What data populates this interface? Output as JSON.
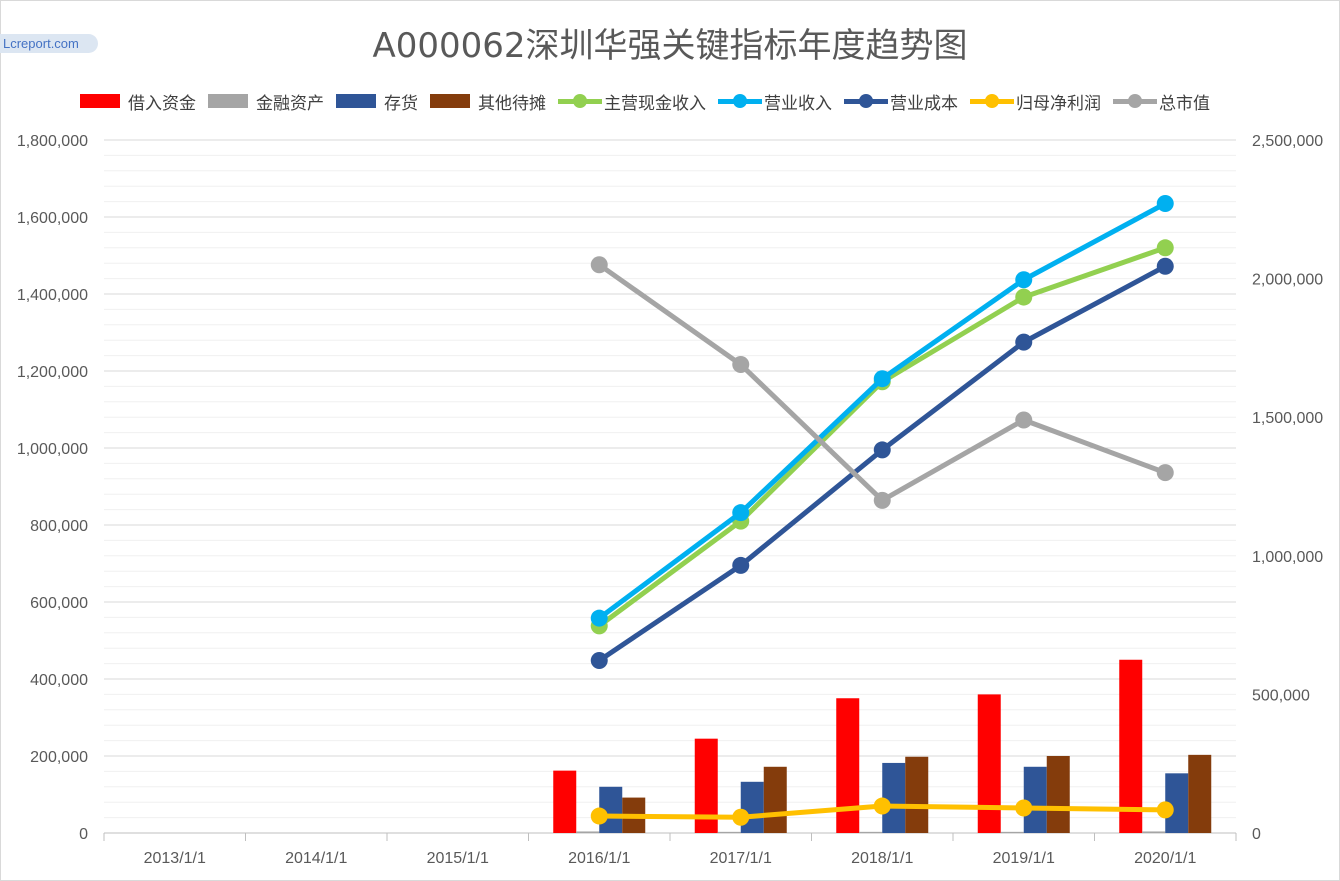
{
  "watermark": "Lcreport.com",
  "chart_data": {
    "type": "bar",
    "title": "A000062深圳华强关键指标年度趋势图",
    "categories": [
      "2013/1/1",
      "2014/1/1",
      "2015/1/1",
      "2016/1/1",
      "2017/1/1",
      "2018/1/1",
      "2019/1/1",
      "2020/1/1"
    ],
    "y_left": {
      "min": 0,
      "max": 1800000,
      "ticks": [
        "0",
        "200,000",
        "400,000",
        "600,000",
        "800,000",
        "1,000,000",
        "1,200,000",
        "1,400,000",
        "1,600,000",
        "1,800,000"
      ]
    },
    "y_right": {
      "min": 0,
      "max": 2500000,
      "ticks": [
        "0",
        "500,000",
        "1,000,000",
        "1,500,000",
        "2,000,000",
        "2,500,000"
      ]
    },
    "grid": true,
    "legend_position": "top",
    "bar_series": [
      {
        "name": "借入资金",
        "color": "#ff0000",
        "values": [
          null,
          null,
          null,
          162000,
          245000,
          350000,
          360000,
          450000
        ]
      },
      {
        "name": "金融资产",
        "color": "#a5a5a5",
        "values": [
          null,
          null,
          null,
          4000,
          3000,
          3000,
          3000,
          4000
        ]
      },
      {
        "name": "存货",
        "color": "#2f5597",
        "values": [
          null,
          null,
          null,
          120000,
          133000,
          182000,
          172000,
          155000
        ]
      },
      {
        "name": "其他待摊",
        "color": "#843c0c",
        "values": [
          null,
          null,
          null,
          92000,
          172000,
          198000,
          200000,
          203000
        ]
      }
    ],
    "line_series": [
      {
        "name": "主营现金收入",
        "color": "#92d050",
        "axis": "left",
        "values": [
          null,
          null,
          null,
          538000,
          810000,
          1172000,
          1392000,
          1520000
        ]
      },
      {
        "name": "营业收入",
        "color": "#00b0f0",
        "axis": "left",
        "values": [
          null,
          null,
          null,
          558000,
          832000,
          1180000,
          1437000,
          1635000
        ]
      },
      {
        "name": "营业成本",
        "color": "#2f5597",
        "axis": "left",
        "values": [
          null,
          null,
          null,
          448000,
          695000,
          995000,
          1275000,
          1472000
        ]
      },
      {
        "name": "归母净利润",
        "color": "#ffc000",
        "axis": "left",
        "values": [
          null,
          null,
          null,
          44000,
          41000,
          70000,
          65000,
          60000
        ]
      },
      {
        "name": "总市值",
        "color": "#a5a5a5",
        "axis": "right",
        "values": [
          null,
          null,
          null,
          2050000,
          1690000,
          1200000,
          1490000,
          1300000
        ]
      }
    ]
  }
}
